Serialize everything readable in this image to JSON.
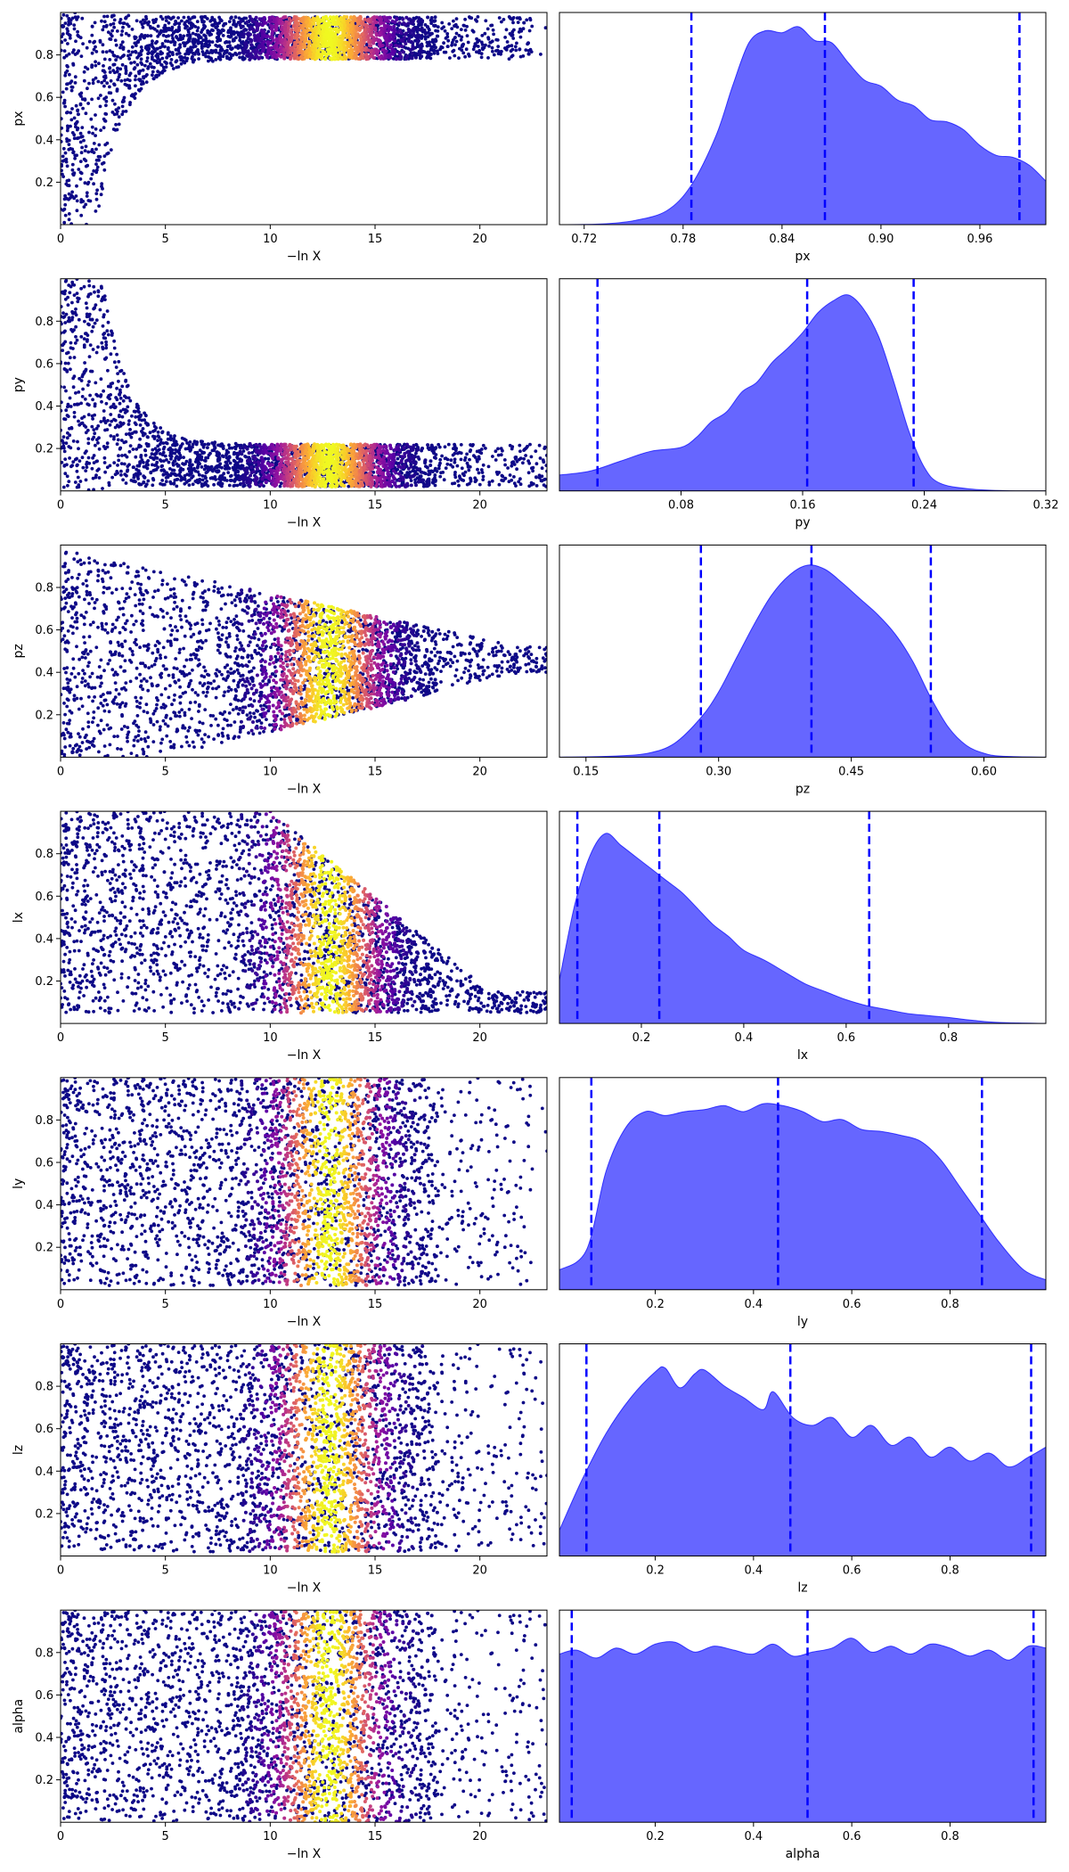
{
  "chart_data": {
    "type": "scatter",
    "layout": {
      "rows": 7,
      "columns": 2
    },
    "colormap": "plasma",
    "colormap_stops": [
      "#0d0887",
      "#5c01a6",
      "#9c179e",
      "#cc4778",
      "#ed7953",
      "#fdb42f",
      "#f0f921"
    ],
    "kde_color": "#0000ff",
    "trace_xlabel": "−ln X",
    "trace_xticks": [
      "0",
      "5",
      "10",
      "15",
      "20"
    ],
    "trace_xlim": [
      0,
      23.2
    ],
    "trace_ylim": [
      0,
      1
    ],
    "trace_yticks": [
      "0.2",
      "0.4",
      "0.6",
      "0.8"
    ],
    "color_peak_neglnx": 12.8,
    "parameters": [
      {
        "name": "px",
        "trace": {
          "kind": "rising",
          "plateau_low": 0.78,
          "plateau_high": 0.98,
          "onset": 1.7,
          "curve_scale": 1.3,
          "max_x": 22.5
        },
        "posterior": {
          "xlim": [
            0.705,
            1.0
          ],
          "xticks": [
            "0.72",
            "0.78",
            "0.84",
            "0.90",
            "0.96"
          ],
          "quantiles": [
            0.785,
            0.866,
            0.984
          ],
          "density_x": [
            0.705,
            0.73,
            0.75,
            0.77,
            0.785,
            0.8,
            0.81,
            0.82,
            0.83,
            0.84,
            0.85,
            0.86,
            0.87,
            0.88,
            0.89,
            0.9,
            0.91,
            0.92,
            0.93,
            0.94,
            0.95,
            0.96,
            0.97,
            0.98,
            0.99,
            1.0
          ],
          "density": [
            0.0,
            0.003,
            0.02,
            0.07,
            0.2,
            0.45,
            0.7,
            0.92,
            0.98,
            0.97,
            1.0,
            0.93,
            0.92,
            0.82,
            0.73,
            0.7,
            0.63,
            0.6,
            0.53,
            0.52,
            0.48,
            0.4,
            0.35,
            0.34,
            0.3,
            0.22
          ]
        }
      },
      {
        "name": "py",
        "trace": {
          "kind": "falling",
          "plateau_low": 0.02,
          "plateau_high": 0.22,
          "onset": 2.0,
          "curve_scale": 1.2,
          "max_x": 23.2
        },
        "posterior": {
          "xlim": [
            0.0,
            0.32
          ],
          "xticks": [
            "0.08",
            "0.16",
            "0.24",
            "0.32"
          ],
          "quantiles": [
            0.025,
            0.163,
            0.233
          ],
          "density_x": [
            0.0,
            0.02,
            0.04,
            0.06,
            0.08,
            0.09,
            0.1,
            0.11,
            0.12,
            0.13,
            0.14,
            0.15,
            0.16,
            0.17,
            0.18,
            0.19,
            0.2,
            0.21,
            0.22,
            0.23,
            0.24,
            0.25,
            0.27,
            0.3,
            0.32
          ],
          "density": [
            0.08,
            0.1,
            0.15,
            0.2,
            0.22,
            0.27,
            0.35,
            0.4,
            0.5,
            0.55,
            0.65,
            0.72,
            0.8,
            0.9,
            0.96,
            0.99,
            0.92,
            0.78,
            0.55,
            0.3,
            0.12,
            0.04,
            0.01,
            0.0,
            0.0
          ]
        }
      },
      {
        "name": "pz",
        "trace": {
          "kind": "converge",
          "center": 0.43,
          "start_half": 0.55,
          "end_half": 0.06,
          "max_x": 23.2
        },
        "posterior": {
          "xlim": [
            0.12,
            0.67
          ],
          "xticks": [
            "0.15",
            "0.30",
            "0.45",
            "0.60"
          ],
          "quantiles": [
            0.28,
            0.405,
            0.54
          ],
          "density_x": [
            0.12,
            0.18,
            0.22,
            0.25,
            0.28,
            0.3,
            0.32,
            0.34,
            0.36,
            0.38,
            0.4,
            0.42,
            0.44,
            0.46,
            0.48,
            0.5,
            0.52,
            0.54,
            0.56,
            0.58,
            0.6,
            0.62,
            0.67
          ],
          "density": [
            0.0,
            0.005,
            0.02,
            0.07,
            0.2,
            0.33,
            0.5,
            0.67,
            0.82,
            0.92,
            0.97,
            0.95,
            0.88,
            0.8,
            0.72,
            0.62,
            0.48,
            0.3,
            0.15,
            0.06,
            0.02,
            0.005,
            0.0
          ]
        }
      },
      {
        "name": "lx",
        "trace": {
          "kind": "triangle",
          "low": 0.05,
          "fade_start": 10.0,
          "fade_end": 20.5,
          "top_end": 0.15,
          "max_x": 23.2
        },
        "posterior": {
          "xlim": [
            0.04,
            0.99
          ],
          "xticks": [
            "0.2",
            "0.4",
            "0.6",
            "0.8"
          ],
          "quantiles": [
            0.075,
            0.235,
            0.645
          ],
          "density_x": [
            0.04,
            0.07,
            0.1,
            0.13,
            0.16,
            0.19,
            0.22,
            0.25,
            0.28,
            0.31,
            0.34,
            0.37,
            0.4,
            0.44,
            0.48,
            0.52,
            0.56,
            0.6,
            0.64,
            0.68,
            0.72,
            0.76,
            0.8,
            0.85,
            0.9,
            0.99
          ],
          "density": [
            0.22,
            0.6,
            0.85,
            0.96,
            0.9,
            0.84,
            0.78,
            0.72,
            0.66,
            0.58,
            0.5,
            0.44,
            0.37,
            0.32,
            0.26,
            0.2,
            0.16,
            0.12,
            0.09,
            0.07,
            0.05,
            0.04,
            0.03,
            0.015,
            0.005,
            0.0
          ]
        }
      },
      {
        "name": "ly",
        "trace": {
          "kind": "uniform",
          "low": 0.02,
          "high": 1.0,
          "max_x": 22.5
        },
        "posterior": {
          "xlim": [
            0.005,
            0.995
          ],
          "xticks": [
            "0.2",
            "0.4",
            "0.6",
            "0.8"
          ],
          "quantiles": [
            0.07,
            0.45,
            0.865
          ],
          "density_x": [
            0.005,
            0.06,
            0.1,
            0.14,
            0.18,
            0.22,
            0.26,
            0.3,
            0.34,
            0.38,
            0.42,
            0.46,
            0.5,
            0.54,
            0.58,
            0.62,
            0.66,
            0.7,
            0.74,
            0.78,
            0.82,
            0.86,
            0.9,
            0.95,
            0.995
          ],
          "density": [
            0.1,
            0.2,
            0.6,
            0.82,
            0.9,
            0.88,
            0.9,
            0.91,
            0.93,
            0.9,
            0.94,
            0.93,
            0.9,
            0.85,
            0.86,
            0.81,
            0.8,
            0.78,
            0.75,
            0.66,
            0.52,
            0.38,
            0.24,
            0.1,
            0.05
          ]
        }
      },
      {
        "name": "lz",
        "trace": {
          "kind": "uniform",
          "low": 0.02,
          "high": 1.0,
          "max_x": 23.2
        },
        "posterior": {
          "xlim": [
            0.005,
            0.995
          ],
          "xticks": [
            "0.2",
            "0.4",
            "0.6",
            "0.8"
          ],
          "quantiles": [
            0.06,
            0.475,
            0.965
          ],
          "density_x": [
            0.005,
            0.05,
            0.1,
            0.15,
            0.2,
            0.22,
            0.25,
            0.28,
            0.3,
            0.34,
            0.38,
            0.42,
            0.44,
            0.48,
            0.52,
            0.56,
            0.6,
            0.64,
            0.68,
            0.72,
            0.76,
            0.8,
            0.84,
            0.88,
            0.92,
            0.96,
            0.995
          ],
          "density": [
            0.13,
            0.38,
            0.62,
            0.8,
            0.93,
            0.95,
            0.85,
            0.92,
            0.94,
            0.86,
            0.8,
            0.74,
            0.83,
            0.7,
            0.66,
            0.7,
            0.6,
            0.66,
            0.56,
            0.6,
            0.5,
            0.55,
            0.48,
            0.52,
            0.45,
            0.5,
            0.55
          ]
        }
      },
      {
        "name": "alpha",
        "trace": {
          "kind": "uniform",
          "low": 0.0,
          "high": 1.0,
          "max_x": 23.2
        },
        "posterior": {
          "xlim": [
            0.005,
            0.995
          ],
          "xticks": [
            "0.2",
            "0.4",
            "0.6",
            "0.8"
          ],
          "quantiles": [
            0.03,
            0.51,
            0.97
          ],
          "density_x": [
            0.005,
            0.04,
            0.08,
            0.12,
            0.16,
            0.2,
            0.24,
            0.28,
            0.32,
            0.36,
            0.4,
            0.44,
            0.48,
            0.52,
            0.56,
            0.6,
            0.64,
            0.68,
            0.72,
            0.76,
            0.8,
            0.84,
            0.88,
            0.92,
            0.96,
            0.995
          ],
          "density": [
            0.85,
            0.87,
            0.83,
            0.88,
            0.85,
            0.9,
            0.91,
            0.86,
            0.89,
            0.87,
            0.85,
            0.9,
            0.84,
            0.86,
            0.88,
            0.93,
            0.86,
            0.89,
            0.85,
            0.9,
            0.88,
            0.84,
            0.87,
            0.82,
            0.89,
            0.88
          ]
        }
      }
    ]
  }
}
